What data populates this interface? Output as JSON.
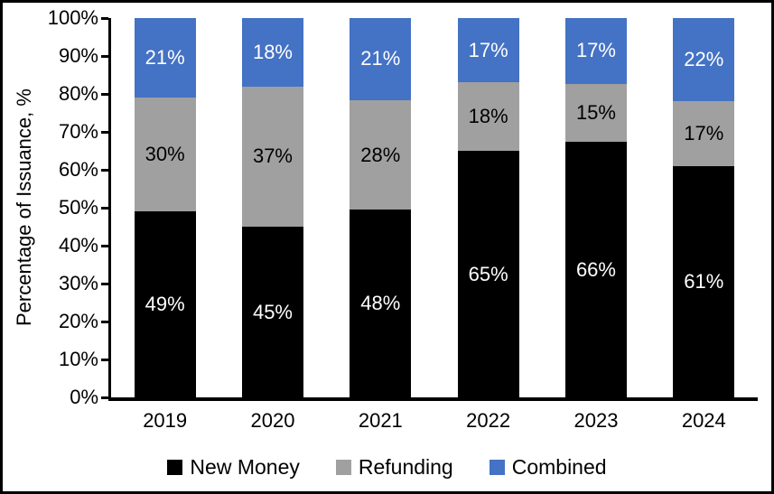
{
  "chart_data": {
    "type": "bar",
    "stacked": true,
    "stack_normalized_to_100": true,
    "title": "",
    "xlabel": "",
    "ylabel": "Percentage of Issuance, %",
    "categories": [
      "2019",
      "2020",
      "2021",
      "2022",
      "2023",
      "2024"
    ],
    "series": [
      {
        "name": "New Money",
        "color": "#000000",
        "label_color": "#ffffff",
        "values": [
          49,
          45,
          48,
          65,
          66,
          61
        ]
      },
      {
        "name": "Refunding",
        "color": "#a0a0a0",
        "label_color": "#000000",
        "values": [
          30,
          37,
          28,
          18,
          15,
          17
        ]
      },
      {
        "name": "Combined",
        "color": "#4472c4",
        "label_color": "#ffffff",
        "values": [
          21,
          18,
          21,
          17,
          17,
          22
        ]
      }
    ],
    "data_label_suffix": "%",
    "y_ticks": [
      "0%",
      "10%",
      "20%",
      "30%",
      "40%",
      "50%",
      "60%",
      "70%",
      "80%",
      "90%",
      "100%"
    ],
    "ylim": [
      0,
      100
    ],
    "grid": false,
    "legend_position": "bottom"
  }
}
